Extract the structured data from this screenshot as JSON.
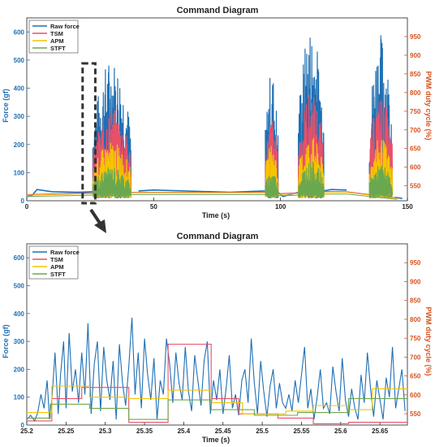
{
  "colors": {
    "raw_force": "#1f6fb4",
    "tsm": "#e8506a",
    "apm": "#f5c400",
    "stft": "#6aa84f",
    "left_axis": "#1f6fb4",
    "right_axis": "#d9531e",
    "zoom_box": "#333333",
    "arrow": "#333333"
  },
  "chart_data": [
    {
      "type": "line",
      "title": "Command Diagram",
      "xlabel": "Time (s)",
      "ylabel": "Force (gf)",
      "y2label": "PWM duty cycle (%)",
      "xlim": [
        0,
        150
      ],
      "ylim": [
        0,
        650
      ],
      "y2lim": [
        510,
        1000
      ],
      "xticks": [
        "0",
        "50",
        "100",
        "150"
      ],
      "yticks": [
        "0",
        "100",
        "200",
        "300",
        "400",
        "500",
        "600"
      ],
      "y2ticks": [
        "550",
        "600",
        "650",
        "700",
        "750",
        "800",
        "850",
        "900",
        "950"
      ],
      "legend": {
        "position": "top-left",
        "entries": [
          "Raw force",
          "TSM",
          "APM",
          "STFT"
        ]
      },
      "zoom_region_x": [
        22,
        27
      ],
      "series": [
        {
          "name": "Raw force",
          "segments": [
            {
              "x": [
                0,
                2,
                4,
                10,
                20,
                26
              ],
              "y": [
                15,
                18,
                40,
                32,
                30,
                32
              ]
            },
            {
              "x": [
                44,
                50,
                80,
                94
              ],
              "y": [
                35,
                38,
                30,
                35
              ]
            },
            {
              "x": [
                99,
                101,
                107
              ],
              "y": [
                30,
                15,
                30
              ]
            },
            {
              "x": [
                117,
                120,
                126
              ],
              "y": [
                35,
                40,
                38
              ]
            },
            {
              "x": [
                145,
                148
              ],
              "y": [
                12,
                8
              ]
            }
          ],
          "bursts": [
            {
              "x": [
                26,
                41
              ],
              "peak": 510
            },
            {
              "x": [
                94,
                99
              ],
              "peak": 465
            },
            {
              "x": [
                107,
                117
              ],
              "peak": 625
            },
            {
              "x": [
                135,
                144
              ],
              "peak": 600
            }
          ]
        },
        {
          "name": "TSM",
          "segments": [
            {
              "x": [
                0,
                26,
                44,
                94,
                99,
                107,
                117,
                126,
                146
              ],
              "y": [
                22,
                28,
                30,
                30,
                25,
                28,
                33,
                32,
                10
              ]
            }
          ],
          "bursts": [
            {
              "x": [
                26,
                41
              ],
              "peak": 330
            },
            {
              "x": [
                94,
                99
              ],
              "peak": 300
            },
            {
              "x": [
                107,
                117
              ],
              "peak": 390
            },
            {
              "x": [
                135,
                144
              ],
              "peak": 380
            }
          ]
        },
        {
          "name": "APM",
          "segments": [
            {
              "x": [
                0,
                26,
                44,
                94,
                99,
                107,
                117,
                126,
                146
              ],
              "y": [
                20,
                25,
                28,
                28,
                22,
                25,
                30,
                30,
                8
              ]
            }
          ],
          "bursts": [
            {
              "x": [
                26,
                41
              ],
              "peak": 210
            },
            {
              "x": [
                94,
                99
              ],
              "peak": 205
            },
            {
              "x": [
                107,
                117
              ],
              "peak": 230
            },
            {
              "x": [
                135,
                144
              ],
              "peak": 225
            }
          ]
        },
        {
          "name": "STFT",
          "segments": [
            {
              "x": [
                0,
                26,
                44,
                94,
                99,
                107,
                117,
                126,
                146
              ],
              "y": [
                15,
                20,
                22,
                22,
                18,
                20,
                24,
                24,
                5
              ]
            }
          ],
          "bursts": [
            {
              "x": [
                26,
                41
              ],
              "peak": 120
            },
            {
              "x": [
                94,
                99
              ],
              "peak": 110
            },
            {
              "x": [
                107,
                117
              ],
              "peak": 140
            },
            {
              "x": [
                135,
                144
              ],
              "peak": 130
            }
          ]
        }
      ]
    },
    {
      "type": "line",
      "title": "Command Diagram",
      "xlabel": "Time (s)",
      "ylabel": "Force (gf)",
      "y2label": "PWM duty cycle (%)",
      "xlim": [
        25.2,
        25.685
      ],
      "ylim": [
        0,
        650
      ],
      "y2lim": [
        520,
        1000
      ],
      "xticks": [
        "25.2",
        "25.25",
        "25.3",
        "25.35",
        "25.4",
        "25.45",
        "25.5",
        "25.55",
        "25.6",
        "25.65"
      ],
      "yticks": [
        "0",
        "100",
        "200",
        "300",
        "400",
        "500",
        "600"
      ],
      "y2ticks": [
        "550",
        "600",
        "650",
        "700",
        "750",
        "800",
        "850",
        "900",
        "950"
      ],
      "legend": {
        "position": "top-left",
        "entries": [
          "Raw force",
          "TSM",
          "APM",
          "STFT"
        ]
      },
      "series": [
        {
          "name": "Raw force",
          "x": [
            25.2,
            25.205,
            25.21,
            25.214,
            25.218,
            25.222,
            25.226,
            25.229,
            25.232,
            25.236,
            25.24,
            25.243,
            25.247,
            25.25,
            25.254,
            25.258,
            25.262,
            25.266,
            25.27,
            25.274,
            25.278,
            25.282,
            25.286,
            25.29,
            25.294,
            25.298,
            25.302,
            25.306,
            25.31,
            25.314,
            25.318,
            25.322,
            25.326,
            25.33,
            25.334,
            25.338,
            25.342,
            25.346,
            25.35,
            25.354,
            25.358,
            25.362,
            25.366,
            25.37,
            25.374,
            25.378,
            25.382,
            25.386,
            25.39,
            25.394,
            25.398,
            25.402,
            25.406,
            25.41,
            25.414,
            25.418,
            25.422,
            25.426,
            25.43,
            25.434,
            25.438,
            25.442,
            25.446,
            25.45,
            25.454,
            25.458,
            25.462,
            25.466,
            25.47,
            25.474,
            25.478,
            25.482,
            25.486,
            25.49,
            25.494,
            25.498,
            25.502,
            25.506,
            25.51,
            25.514,
            25.518,
            25.522,
            25.526,
            25.53,
            25.534,
            25.538,
            25.542,
            25.546,
            25.55,
            25.554,
            25.558,
            25.562,
            25.566,
            25.57,
            25.574,
            25.578,
            25.582,
            25.586,
            25.59,
            25.594,
            25.598,
            25.602,
            25.606,
            25.61,
            25.614,
            25.618,
            25.622,
            25.626,
            25.63,
            25.634,
            25.638,
            25.642,
            25.646,
            25.65,
            25.654,
            25.658,
            25.662,
            25.666,
            25.67,
            25.674,
            25.678,
            25.682
          ],
          "y": [
            20,
            35,
            15,
            45,
            110,
            60,
            160,
            20,
            90,
            260,
            40,
            180,
            300,
            60,
            330,
            120,
            200,
            80,
            260,
            110,
            365,
            40,
            220,
            300,
            50,
            280,
            160,
            90,
            230,
            20,
            290,
            150,
            70,
            210,
            385,
            110,
            260,
            60,
            310,
            180,
            90,
            240,
            20,
            160,
            110,
            310,
            220,
            80,
            260,
            150,
            90,
            280,
            120,
            50,
            250,
            160,
            70,
            230,
            300,
            40,
            160,
            90,
            200,
            40,
            130,
            250,
            60,
            110,
            35,
            160,
            200,
            80,
            310,
            150,
            40,
            230,
            120,
            30,
            140,
            200,
            60,
            150,
            80,
            60,
            110,
            50,
            160,
            80,
            180,
            280,
            60,
            130,
            20,
            100,
            200,
            60,
            80,
            40,
            210,
            120,
            50,
            240,
            90,
            30,
            130,
            60,
            20,
            180,
            80,
            260,
            130,
            30,
            160,
            90,
            20,
            170,
            100,
            280,
            60,
            130,
            200,
            50
          ]
        },
        {
          "name": "TSM",
          "x": [
            25.2,
            25.232,
            25.232,
            25.27,
            25.27,
            25.33,
            25.33,
            25.38,
            25.38,
            25.435,
            25.435,
            25.47,
            25.47,
            25.52,
            25.52,
            25.565,
            25.565,
            25.61,
            25.61,
            25.685
          ],
          "y": [
            15,
            15,
            95,
            95,
            135,
            135,
            10,
            10,
            290,
            290,
            95,
            95,
            40,
            40,
            25,
            25,
            5,
            5,
            10,
            10
          ]
        },
        {
          "name": "APM",
          "x": [
            25.2,
            25.232,
            25.232,
            25.28,
            25.28,
            25.33,
            25.33,
            25.38,
            25.38,
            25.435,
            25.435,
            25.475,
            25.475,
            25.53,
            25.53,
            25.565,
            25.565,
            25.61,
            25.61,
            25.64,
            25.64,
            25.685
          ],
          "y": [
            45,
            45,
            140,
            140,
            100,
            100,
            95,
            95,
            125,
            125,
            80,
            80,
            40,
            40,
            50,
            50,
            70,
            70,
            55,
            55,
            130,
            130
          ]
        },
        {
          "name": "STFT",
          "x": [
            25.2,
            25.23,
            25.23,
            25.28,
            25.28,
            25.33,
            25.33,
            25.38,
            25.38,
            25.435,
            25.435,
            25.49,
            25.49,
            25.545,
            25.545,
            25.61,
            25.61,
            25.685
          ],
          "y": [
            25,
            25,
            75,
            75,
            60,
            60,
            20,
            20,
            90,
            90,
            55,
            55,
            35,
            35,
            45,
            45,
            95,
            95
          ]
        }
      ]
    }
  ]
}
